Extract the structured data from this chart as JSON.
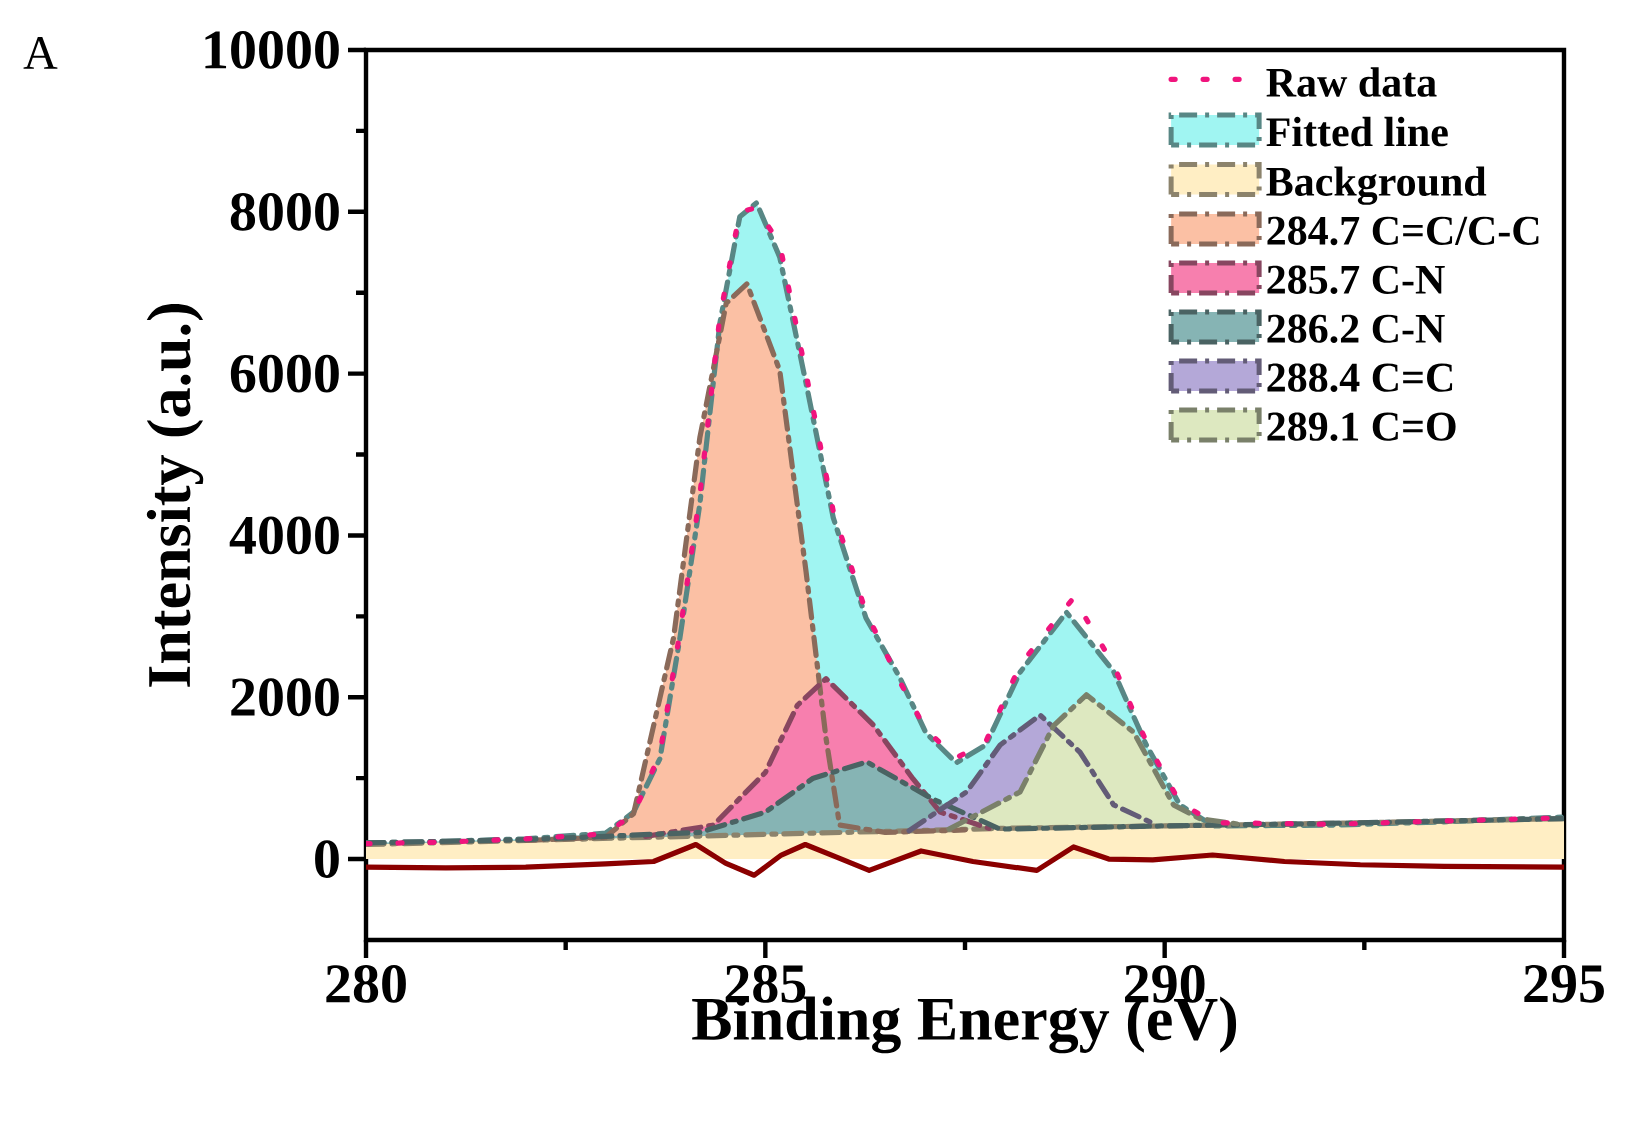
{
  "chart_data": {
    "type": "area",
    "xlabel": "Binding Energy (eV)",
    "ylabel": "Intensity (a.u.)",
    "annotations": [
      "A"
    ],
    "xlim": [
      280,
      295
    ],
    "xticks": [
      280,
      285,
      290,
      295
    ],
    "ylim": [
      -1000,
      10000
    ],
    "yticks": [
      0,
      2000,
      4000,
      6000,
      8000,
      10000
    ],
    "grid": false,
    "legend": "top right",
    "series": [
      {
        "name": "Fitted line",
        "line_style": "dashed",
        "color": "#a0f5f2",
        "x": [
          280,
          281,
          282,
          283,
          283.35,
          283.68,
          283.93,
          284.18,
          284.43,
          284.68,
          284.89,
          285.18,
          285.51,
          285.85,
          286.26,
          286.69,
          287.01,
          287.39,
          287.76,
          288.19,
          288.77,
          289.36,
          289.77,
          290.19,
          290.61,
          292.1,
          293.5,
          295
        ],
        "values": [
          200,
          220,
          250,
          320,
          580,
          1240,
          2730,
          4390,
          6620,
          7940,
          8110,
          7440,
          5880,
          4220,
          2980,
          2230,
          1560,
          1190,
          1410,
          2310,
          3050,
          2320,
          1410,
          670,
          410,
          420,
          460,
          520
        ]
      },
      {
        "name": "Background",
        "line_style": "dashed",
        "color": "#ffeec4",
        "x": [
          280,
          282,
          284,
          286,
          288,
          290,
          292,
          295
        ],
        "values": [
          180,
          230,
          280,
          330,
          380,
          410,
          440,
          500
        ]
      },
      {
        "name": "284.7 C=C/C-C",
        "line_style": "dashed",
        "color": "#fbc0a4",
        "x": [
          282,
          283,
          283.35,
          283.85,
          284.18,
          284.51,
          284.77,
          285.18,
          285.51,
          285.76,
          285.93,
          286.5,
          287.5
        ],
        "values": [
          230,
          270,
          560,
          2730,
          5210,
          6870,
          7110,
          6040,
          3550,
          1490,
          420,
          330,
          360
        ]
      },
      {
        "name": "285.7 C-N",
        "line_style": "dashed",
        "color": "#f77fae",
        "x": [
          283.5,
          284.35,
          285.0,
          285.4,
          285.76,
          286.35,
          286.85,
          287.19,
          287.8
        ],
        "values": [
          280,
          420,
          1070,
          1900,
          2230,
          1660,
          990,
          580,
          380
        ]
      },
      {
        "name": "286.2 C-N",
        "line_style": "dashed",
        "color": "#86b4b4",
        "x": [
          280,
          282,
          284.18,
          285.0,
          285.6,
          286.27,
          287.1,
          287.94,
          290,
          292,
          295
        ],
        "values": [
          200,
          240,
          330,
          580,
          1000,
          1200,
          740,
          370,
          410,
          440,
          500
        ]
      },
      {
        "name": "288.4 C=C",
        "line_style": "dashed",
        "color": "#b4a8d8",
        "x": [
          286.8,
          287.52,
          287.94,
          288.44,
          288.94,
          289.36,
          289.9
        ],
        "values": [
          350,
          830,
          1410,
          1780,
          1320,
          670,
          420
        ]
      },
      {
        "name": "289.1 C=O",
        "line_style": "dashed",
        "color": "#dde8c0",
        "x": [
          287.3,
          288.19,
          288.61,
          289.02,
          289.61,
          290.11,
          290.44,
          291
        ],
        "values": [
          370,
          830,
          1650,
          2030,
          1570,
          670,
          500,
          420
        ]
      },
      {
        "name": "Raw data",
        "type": "line",
        "line_style": "dotted",
        "color": "#f0147d",
        "x": [
          280,
          281,
          282,
          283,
          283.35,
          283.68,
          283.93,
          284.18,
          284.43,
          284.68,
          284.89,
          285.18,
          285.51,
          285.85,
          286.26,
          286.69,
          287.01,
          287.39,
          287.76,
          288.19,
          288.86,
          289.36,
          289.77,
          290.19,
          290.61,
          292.1,
          293.5,
          295
        ],
        "values": [
          190,
          210,
          250,
          310,
          560,
          1300,
          2800,
          4500,
          6700,
          8000,
          8050,
          7600,
          6000,
          4300,
          3050,
          2180,
          1600,
          1250,
          1450,
          2400,
          3230,
          2400,
          1450,
          700,
          450,
          430,
          470,
          510
        ]
      },
      {
        "type": "line",
        "line_style": "solid",
        "color": "#8b0000",
        "x": [
          280,
          281,
          282,
          283,
          283.6,
          284.13,
          284.5,
          284.86,
          285.2,
          285.5,
          285.9,
          286.3,
          286.95,
          287.6,
          288.4,
          288.86,
          289.3,
          289.85,
          290.6,
          291.5,
          292.45,
          293.5,
          295
        ],
        "values": [
          -100,
          -110,
          -100,
          -60,
          -30,
          180,
          -50,
          -200,
          50,
          180,
          20,
          -140,
          100,
          -30,
          -140,
          150,
          0,
          -10,
          50,
          -30,
          -70,
          -90,
          -100
        ]
      }
    ]
  }
}
